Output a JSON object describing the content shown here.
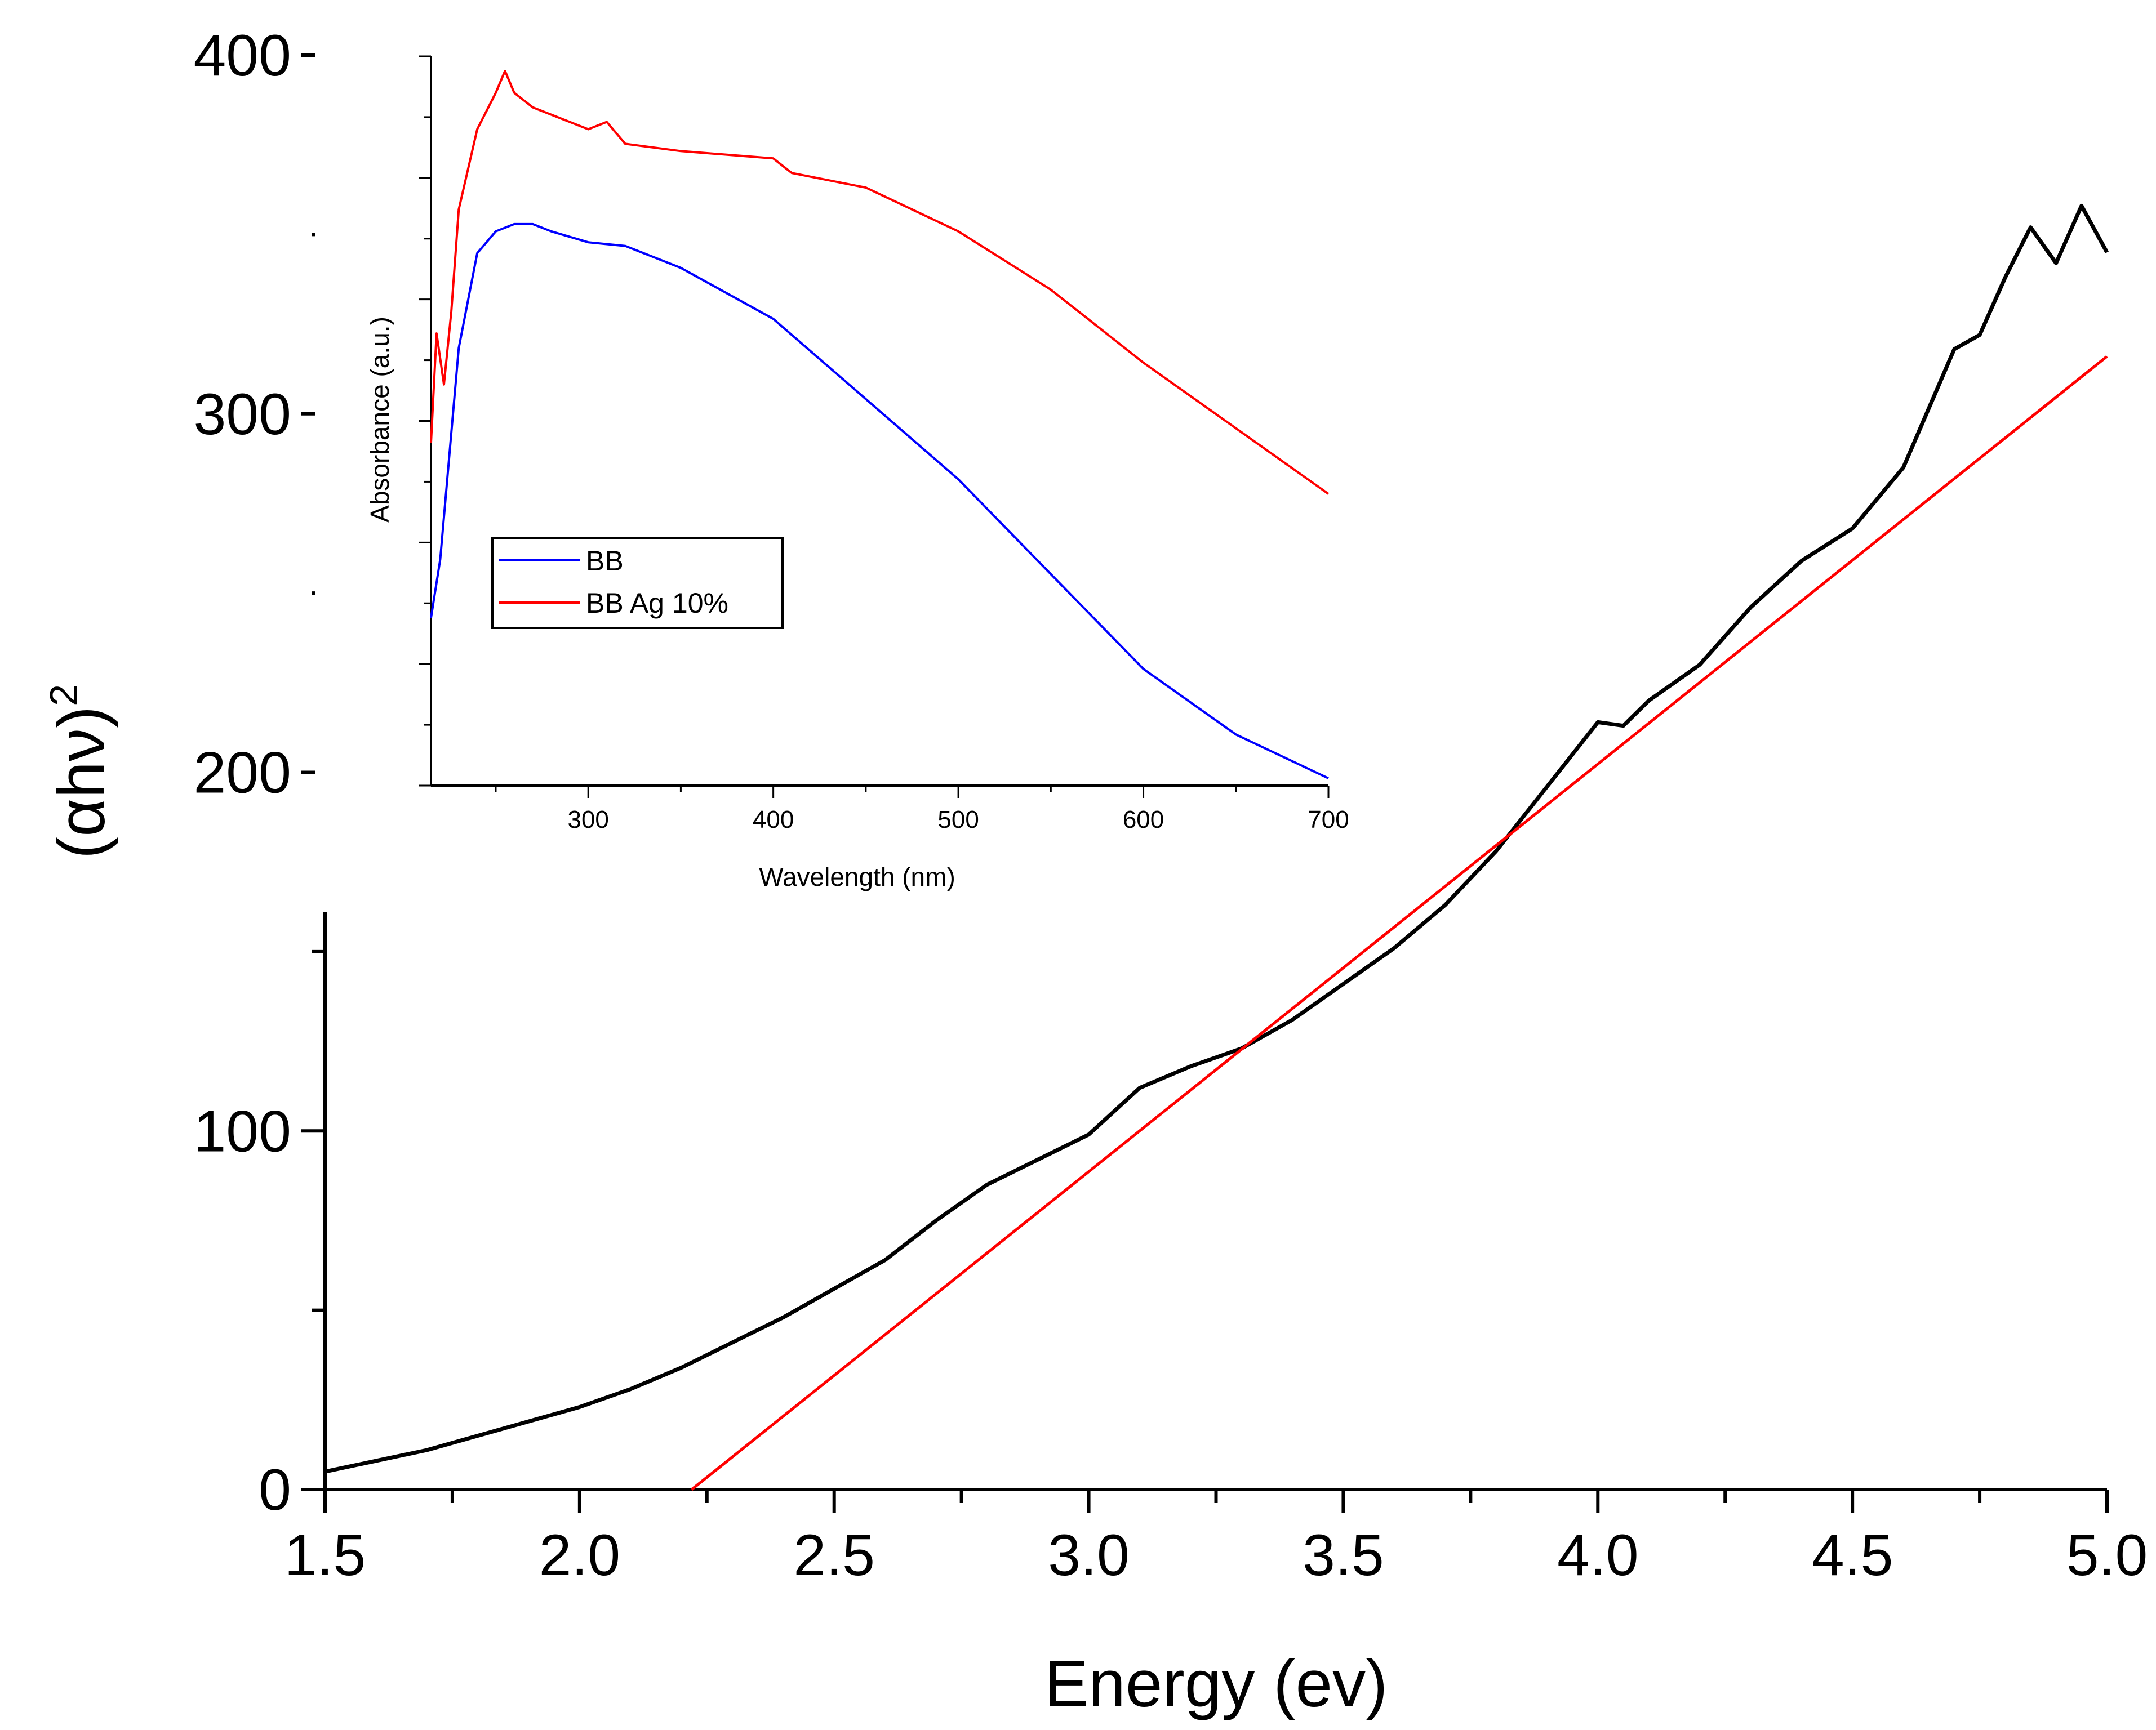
{
  "chart_data": [
    {
      "id": "main",
      "type": "line",
      "xlabel": "Energy (ev)",
      "ylabel": "(αhν)",
      "ylabel_superscript": "2",
      "xlim": [
        1.5,
        5.0
      ],
      "ylim": [
        0,
        400
      ],
      "xticks": [
        "1.5",
        "2.0",
        "2.5",
        "3.0",
        "3.5",
        "4.0",
        "4.5",
        "5.0"
      ],
      "yticks": [
        "0",
        "100",
        "200",
        "300",
        "400"
      ],
      "grid": false,
      "series": [
        {
          "color": "#000000",
          "x": [
            1.5,
            1.6,
            1.7,
            1.8,
            1.9,
            2.0,
            2.1,
            2.2,
            2.3,
            2.4,
            2.5,
            2.6,
            2.7,
            2.8,
            2.9,
            3.0,
            3.1,
            3.2,
            3.3,
            3.4,
            3.5,
            3.6,
            3.7,
            3.8,
            3.9,
            4.0,
            4.05,
            4.1,
            4.2,
            4.3,
            4.4,
            4.5,
            4.6,
            4.7,
            4.75,
            4.8,
            4.85,
            4.9,
            4.95,
            5.0
          ],
          "y": [
            5,
            8,
            11,
            15,
            19,
            23,
            28,
            34,
            41,
            48,
            56,
            64,
            75,
            85,
            92,
            99,
            112,
            118,
            123,
            131,
            141,
            151,
            163,
            178,
            196,
            214,
            213,
            220,
            230,
            246,
            259,
            268,
            285,
            318,
            322,
            338,
            352,
            342,
            358,
            345
          ]
        },
        {
          "color": "#ff0000",
          "x": [
            2.22,
            5.0
          ],
          "y": [
            0,
            316
          ]
        }
      ]
    },
    {
      "id": "inset",
      "type": "line",
      "xlabel": "Wavelength  (nm)",
      "ylabel": "Absorbance (a.u.)",
      "xlim": [
        215,
        700
      ],
      "ylim": [
        0,
        1
      ],
      "xticks": [
        "300",
        "400",
        "500",
        "600",
        "700"
      ],
      "yticks": [],
      "grid": false,
      "legend_position": "left",
      "series": [
        {
          "name": "BB",
          "color": "#0000ff",
          "x": [
            215,
            220,
            230,
            240,
            250,
            260,
            270,
            280,
            300,
            320,
            350,
            400,
            450,
            500,
            550,
            600,
            650,
            700
          ],
          "y": [
            0.23,
            0.31,
            0.6,
            0.73,
            0.76,
            0.77,
            0.77,
            0.76,
            0.745,
            0.74,
            0.71,
            0.64,
            0.53,
            0.42,
            0.29,
            0.16,
            0.07,
            0.01
          ]
        },
        {
          "name": "BB Ag 10%",
          "color": "#ff0000",
          "x": [
            215,
            218,
            222,
            226,
            230,
            240,
            250,
            255,
            260,
            270,
            280,
            300,
            310,
            320,
            350,
            400,
            410,
            450,
            500,
            550,
            600,
            650,
            700
          ],
          "y": [
            0.47,
            0.62,
            0.55,
            0.65,
            0.79,
            0.9,
            0.95,
            0.98,
            0.95,
            0.93,
            0.92,
            0.9,
            0.91,
            0.88,
            0.87,
            0.86,
            0.84,
            0.82,
            0.76,
            0.68,
            0.58,
            0.49,
            0.4
          ]
        }
      ]
    }
  ]
}
